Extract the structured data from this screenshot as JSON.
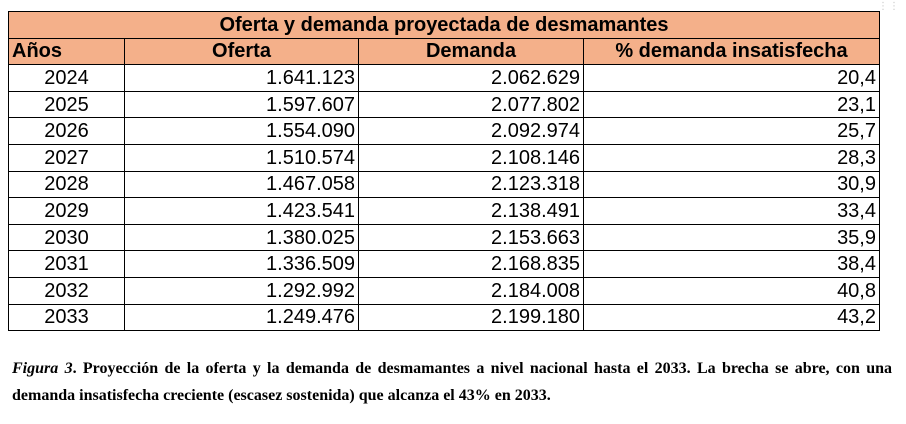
{
  "table": {
    "title": "Oferta y demanda proyectada de desmamantes",
    "headers": [
      "Años",
      "Oferta",
      "Demanda",
      "% demanda insatisfecha"
    ],
    "rows": [
      [
        "2024",
        "1.641.123",
        "2.062.629",
        "20,4"
      ],
      [
        "2025",
        "1.597.607",
        "2.077.802",
        "23,1"
      ],
      [
        "2026",
        "1.554.090",
        "2.092.974",
        "25,7"
      ],
      [
        "2027",
        "1.510.574",
        "2.108.146",
        "28,3"
      ],
      [
        "2028",
        "1.467.058",
        "2.123.318",
        "30,9"
      ],
      [
        "2029",
        "1.423.541",
        "2.138.491",
        "33,4"
      ],
      [
        "2030",
        "1.380.025",
        "2.153.663",
        "35,9"
      ],
      [
        "2031",
        "1.336.509",
        "2.168.835",
        "38,4"
      ],
      [
        "2032",
        "1.292.992",
        "2.184.008",
        "40,8"
      ],
      [
        "2033",
        "1.249.476",
        "2.199.180",
        "43,2"
      ]
    ],
    "header_color": "#f4b08a"
  },
  "caption": {
    "label": "Figura 3",
    "text": ". Proyección de la oferta y la demanda de desmamantes a nivel nacional hasta el 2033. La brecha se abre, con una demanda insatisfecha creciente (escasez sostenida) que alcanza el 43% en 2033."
  },
  "corner_icon": "more-dots-icon"
}
